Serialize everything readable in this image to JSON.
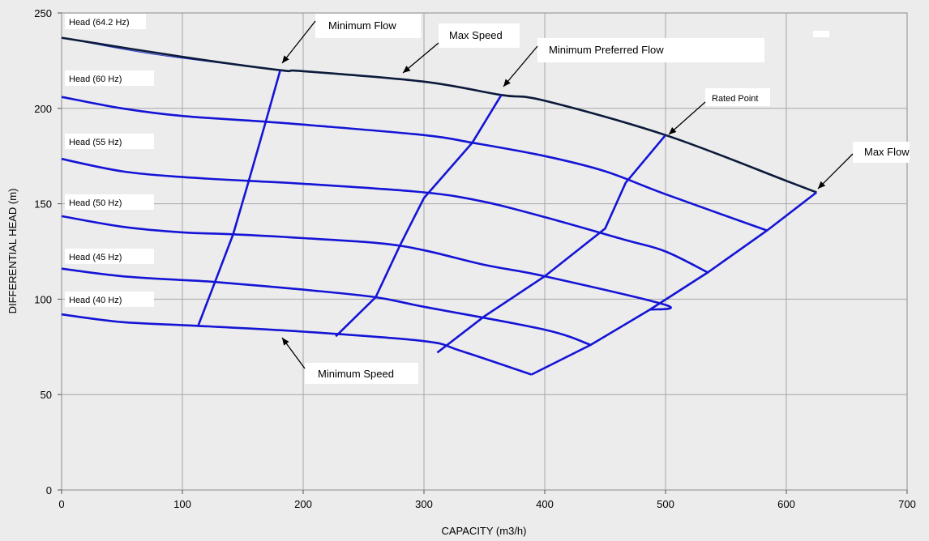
{
  "chart_data": {
    "type": "line",
    "title": "",
    "xlabel": "CAPACITY (m3/h)",
    "ylabel": "DIFFERENTIAL HEAD (m)",
    "xlim": [
      0,
      700
    ],
    "ylim": [
      0,
      250
    ],
    "x_ticks": [
      "0",
      "100",
      "200",
      "300",
      "400",
      "500",
      "600",
      "700"
    ],
    "y_ticks": [
      "0",
      "50",
      "100",
      "150",
      "200",
      "250"
    ],
    "grid": true,
    "speed_curves": [
      {
        "name": "Head (64.2 Hz)",
        "points": [
          [
            0,
            237
          ],
          [
            100,
            227
          ],
          [
            181,
            220
          ],
          [
            200,
            219.5
          ],
          [
            300,
            214
          ],
          [
            364,
            207
          ],
          [
            400,
            204
          ],
          [
            500,
            186
          ],
          [
            600,
            162
          ],
          [
            625,
            156
          ]
        ]
      },
      {
        "name": "Head (60 Hz)",
        "points": [
          [
            0,
            206
          ],
          [
            50,
            200
          ],
          [
            100,
            196
          ],
          [
            169,
            193
          ],
          [
            200,
            191.5
          ],
          [
            300,
            186
          ],
          [
            340,
            182
          ],
          [
            400,
            175
          ],
          [
            450,
            167
          ],
          [
            500,
            155
          ],
          [
            584,
            136
          ]
        ]
      },
      {
        "name": "Head (55 Hz)",
        "points": [
          [
            0,
            173.5
          ],
          [
            50,
            167
          ],
          [
            100,
            164
          ],
          [
            155,
            162
          ],
          [
            200,
            160.5
          ],
          [
            300,
            156
          ],
          [
            350,
            151
          ],
          [
            400,
            143
          ],
          [
            467,
            131
          ],
          [
            500,
            125
          ],
          [
            535,
            114
          ]
        ]
      },
      {
        "name": "Head (50 Hz)",
        "points": [
          [
            0,
            143.5
          ],
          [
            50,
            138
          ],
          [
            100,
            135
          ],
          [
            142,
            134
          ],
          [
            200,
            132
          ],
          [
            280,
            128
          ],
          [
            350,
            118
          ],
          [
            400,
            112
          ],
          [
            500,
            97
          ],
          [
            487,
            94.5
          ]
        ]
      },
      {
        "name": "Head (45 Hz)",
        "points": [
          [
            0,
            116
          ],
          [
            50,
            112
          ],
          [
            100,
            110
          ],
          [
            127,
            109
          ],
          [
            200,
            105
          ],
          [
            260,
            101
          ],
          [
            300,
            96
          ],
          [
            400,
            84
          ],
          [
            438,
            76
          ]
        ]
      },
      {
        "name": "Head (40 Hz)",
        "points": [
          [
            0,
            92
          ],
          [
            50,
            88
          ],
          [
            113,
            86
          ],
          [
            200,
            83
          ],
          [
            300,
            78
          ],
          [
            330,
            73
          ],
          [
            389,
            60.5
          ]
        ]
      }
    ],
    "min_flow_line": [
      [
        113,
        86
      ],
      [
        127,
        109
      ],
      [
        142,
        134
      ],
      [
        155,
        162
      ],
      [
        169,
        193
      ],
      [
        181,
        220
      ]
    ],
    "min_preferred_flow_line": [
      [
        227,
        80.5
      ],
      [
        260,
        101
      ],
      [
        280,
        128
      ],
      [
        300,
        153
      ],
      [
        340,
        182
      ],
      [
        364,
        207
      ]
    ],
    "rated_line": [
      [
        311,
        72
      ],
      [
        350,
        91
      ],
      [
        400,
        112
      ],
      [
        450,
        137
      ],
      [
        467,
        161
      ],
      [
        500,
        186
      ]
    ],
    "max_flow_line": [
      [
        389,
        60.5
      ],
      [
        438,
        76
      ],
      [
        487,
        94.5
      ],
      [
        535,
        114
      ],
      [
        584,
        136
      ],
      [
        625,
        156
      ]
    ],
    "labels": {
      "min_flow": "Minimum Flow",
      "max_speed": "Max Speed",
      "min_pref_flow": "Minimum Preferred Flow",
      "rated_point": "Rated Point",
      "max_flow": "Max Flow",
      "min_speed": "Minimum Speed"
    },
    "colors": {
      "max_speed_curve": "#0b1a3a",
      "operating_curves": "#1414d6",
      "grid": "#a6a6a6",
      "background": "#ececec"
    }
  }
}
